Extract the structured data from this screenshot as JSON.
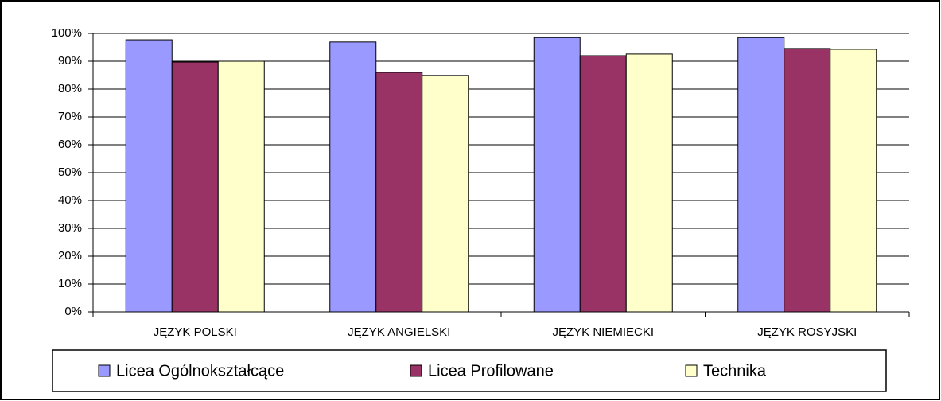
{
  "chart_data": {
    "type": "bar",
    "categories": [
      "JĘZYK POLSKI",
      "JĘZYK ANGIELSKI",
      "JĘZYK NIEMIECKI",
      "JĘZYK ROSYJSKI"
    ],
    "series": [
      {
        "name": "Licea Ogólnokształcące",
        "color": "#9999ff",
        "values": [
          97.7,
          96.9,
          98.5,
          98.5
        ]
      },
      {
        "name": "Licea Profilowane",
        "color": "#993366",
        "values": [
          89.7,
          86,
          92,
          94.6
        ]
      },
      {
        "name": "Technika",
        "color": "#ffffcc",
        "values": [
          90,
          84.9,
          92.6,
          94.3
        ]
      }
    ],
    "ylim": [
      0,
      100
    ],
    "yticks": [
      {
        "value": 0,
        "label": "0%"
      },
      {
        "value": 10,
        "label": "10%"
      },
      {
        "value": 20,
        "label": "20%"
      },
      {
        "value": 30,
        "label": "30%"
      },
      {
        "value": 40,
        "label": "40%"
      },
      {
        "value": 50,
        "label": "50%"
      },
      {
        "value": 60,
        "label": "60%"
      },
      {
        "value": 70,
        "label": "70%"
      },
      {
        "value": 80,
        "label": "80%"
      },
      {
        "value": 90,
        "label": "90%"
      },
      {
        "value": 100,
        "label": "100%"
      }
    ],
    "grid": true,
    "legend": "bottom"
  }
}
